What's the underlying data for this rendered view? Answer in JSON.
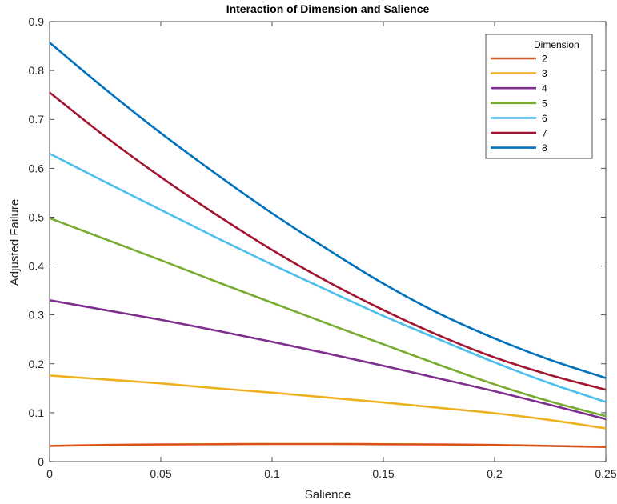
{
  "chart_data": {
    "type": "line",
    "title": "Interaction of Dimension and Salience",
    "xlabel": "Salience",
    "ylabel": "Adjusted Failure",
    "xlim": [
      0,
      0.25
    ],
    "ylim": [
      0,
      0.9
    ],
    "xticks": [
      0,
      0.05,
      0.1,
      0.15,
      0.2,
      0.25
    ],
    "xtick_labels": [
      "0",
      "0.05",
      "0.1",
      "0.15",
      "0.2",
      "0.25"
    ],
    "yticks": [
      0,
      0.1,
      0.2,
      0.3,
      0.4,
      0.5,
      0.6,
      0.7,
      0.8,
      0.9
    ],
    "ytick_labels": [
      "0",
      "0.1",
      "0.2",
      "0.3",
      "0.4",
      "0.5",
      "0.6",
      "0.7",
      "0.8",
      "0.9"
    ],
    "grid": false,
    "legend": {
      "title": "Dimension",
      "position": "top-right"
    },
    "x": [
      0,
      0.025,
      0.05,
      0.075,
      0.1,
      0.125,
      0.15,
      0.175,
      0.2,
      0.225,
      0.25
    ],
    "series": [
      {
        "name": "2",
        "color": "#D95319",
        "values": [
          0.032,
          0.034,
          0.035,
          0.0355,
          0.036,
          0.036,
          0.0355,
          0.035,
          0.034,
          0.032,
          0.03
        ]
      },
      {
        "name": "3",
        "color": "#EDB120",
        "values": [
          0.176,
          0.168,
          0.16,
          0.15,
          0.141,
          0.131,
          0.121,
          0.11,
          0.099,
          0.085,
          0.068
        ]
      },
      {
        "name": "4",
        "color": "#7E2F8E",
        "values": [
          0.33,
          0.31,
          0.29,
          0.268,
          0.245,
          0.221,
          0.196,
          0.17,
          0.144,
          0.116,
          0.087
        ]
      },
      {
        "name": "5",
        "color": "#77AC30",
        "values": [
          0.498,
          0.455,
          0.412,
          0.368,
          0.325,
          0.282,
          0.24,
          0.198,
          0.158,
          0.123,
          0.093
        ]
      },
      {
        "name": "6",
        "color": "#4DBEEE",
        "values": [
          0.63,
          0.572,
          0.515,
          0.458,
          0.403,
          0.35,
          0.298,
          0.25,
          0.203,
          0.16,
          0.122
        ]
      },
      {
        "name": "7",
        "color": "#A2142F",
        "values": [
          0.755,
          0.665,
          0.582,
          0.505,
          0.433,
          0.368,
          0.31,
          0.258,
          0.213,
          0.177,
          0.147
        ]
      },
      {
        "name": "8",
        "color": "#0072BD",
        "values": [
          0.857,
          0.762,
          0.672,
          0.588,
          0.508,
          0.434,
          0.364,
          0.303,
          0.252,
          0.208,
          0.171
        ]
      }
    ]
  }
}
